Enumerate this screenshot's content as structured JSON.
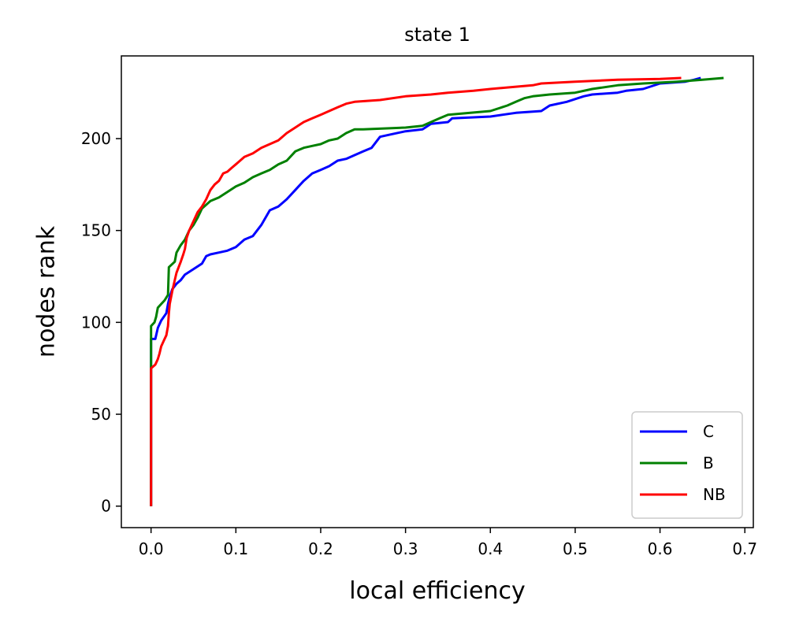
{
  "chart_data": {
    "type": "line",
    "title": "state 1",
    "xlabel": "local efficiency",
    "ylabel": "nodes rank",
    "xlim": [
      -0.035,
      0.71
    ],
    "ylim": [
      -11.7,
      245
    ],
    "xticks": [
      "0.0",
      "0.1",
      "0.2",
      "0.3",
      "0.4",
      "0.5",
      "0.6",
      "0.7"
    ],
    "yticks": [
      "0",
      "50",
      "100",
      "150",
      "200"
    ],
    "legend_position": "lower-right",
    "series": [
      {
        "name": "C",
        "color": "#0000ff",
        "points": [
          [
            0,
            0
          ],
          [
            0,
            75
          ],
          [
            0.0,
            91
          ],
          [
            0.005,
            91
          ],
          [
            0.008,
            97
          ],
          [
            0.012,
            101
          ],
          [
            0.018,
            105
          ],
          [
            0.02,
            110
          ],
          [
            0.022,
            114
          ],
          [
            0.025,
            118
          ],
          [
            0.03,
            121
          ],
          [
            0.035,
            123
          ],
          [
            0.04,
            126
          ],
          [
            0.05,
            129
          ],
          [
            0.06,
            132
          ],
          [
            0.065,
            136
          ],
          [
            0.07,
            137
          ],
          [
            0.08,
            138
          ],
          [
            0.09,
            139
          ],
          [
            0.1,
            141
          ],
          [
            0.11,
            145
          ],
          [
            0.12,
            147
          ],
          [
            0.13,
            153
          ],
          [
            0.14,
            161
          ],
          [
            0.15,
            163
          ],
          [
            0.16,
            167
          ],
          [
            0.17,
            172
          ],
          [
            0.18,
            177
          ],
          [
            0.19,
            181
          ],
          [
            0.2,
            183
          ],
          [
            0.21,
            185
          ],
          [
            0.22,
            188
          ],
          [
            0.23,
            189
          ],
          [
            0.24,
            191
          ],
          [
            0.25,
            193
          ],
          [
            0.26,
            195
          ],
          [
            0.27,
            201
          ],
          [
            0.28,
            202
          ],
          [
            0.3,
            204
          ],
          [
            0.32,
            205
          ],
          [
            0.33,
            208
          ],
          [
            0.35,
            209
          ],
          [
            0.355,
            211
          ],
          [
            0.4,
            212
          ],
          [
            0.43,
            214
          ],
          [
            0.46,
            215
          ],
          [
            0.47,
            218
          ],
          [
            0.49,
            220
          ],
          [
            0.51,
            223
          ],
          [
            0.52,
            224
          ],
          [
            0.55,
            225
          ],
          [
            0.56,
            226
          ],
          [
            0.58,
            227
          ],
          [
            0.6,
            230
          ],
          [
            0.63,
            231
          ],
          [
            0.64,
            232
          ],
          [
            0.648,
            233
          ]
        ]
      },
      {
        "name": "B",
        "color": "#008000",
        "points": [
          [
            0,
            0
          ],
          [
            0,
            75
          ],
          [
            0,
            98
          ],
          [
            0.004,
            100
          ],
          [
            0.006,
            103
          ],
          [
            0.008,
            108
          ],
          [
            0.012,
            110
          ],
          [
            0.016,
            112
          ],
          [
            0.02,
            115
          ],
          [
            0.021,
            130
          ],
          [
            0.028,
            133
          ],
          [
            0.03,
            138
          ],
          [
            0.035,
            142
          ],
          [
            0.04,
            145
          ],
          [
            0.045,
            150
          ],
          [
            0.05,
            153
          ],
          [
            0.055,
            157
          ],
          [
            0.06,
            162
          ],
          [
            0.065,
            164
          ],
          [
            0.07,
            166
          ],
          [
            0.08,
            168
          ],
          [
            0.09,
            171
          ],
          [
            0.1,
            174
          ],
          [
            0.11,
            176
          ],
          [
            0.12,
            179
          ],
          [
            0.13,
            181
          ],
          [
            0.14,
            183
          ],
          [
            0.15,
            186
          ],
          [
            0.16,
            188
          ],
          [
            0.17,
            193
          ],
          [
            0.18,
            195
          ],
          [
            0.19,
            196
          ],
          [
            0.2,
            197
          ],
          [
            0.21,
            199
          ],
          [
            0.22,
            200
          ],
          [
            0.23,
            203
          ],
          [
            0.24,
            205
          ],
          [
            0.25,
            205
          ],
          [
            0.3,
            206
          ],
          [
            0.32,
            207
          ],
          [
            0.33,
            209
          ],
          [
            0.34,
            211
          ],
          [
            0.35,
            213
          ],
          [
            0.4,
            215
          ],
          [
            0.42,
            218
          ],
          [
            0.43,
            220
          ],
          [
            0.44,
            222
          ],
          [
            0.45,
            223
          ],
          [
            0.47,
            224
          ],
          [
            0.5,
            225
          ],
          [
            0.52,
            227
          ],
          [
            0.55,
            229
          ],
          [
            0.58,
            230
          ],
          [
            0.62,
            231
          ],
          [
            0.65,
            232
          ],
          [
            0.675,
            233
          ]
        ]
      },
      {
        "name": "NB",
        "color": "#ff0000",
        "points": [
          [
            0,
            0
          ],
          [
            0,
            75
          ],
          [
            0.005,
            77
          ],
          [
            0.008,
            80
          ],
          [
            0.01,
            83
          ],
          [
            0.012,
            87
          ],
          [
            0.015,
            90
          ],
          [
            0.018,
            93
          ],
          [
            0.02,
            98
          ],
          [
            0.021,
            105
          ],
          [
            0.022,
            110
          ],
          [
            0.025,
            117
          ],
          [
            0.028,
            123
          ],
          [
            0.03,
            127
          ],
          [
            0.035,
            133
          ],
          [
            0.038,
            137
          ],
          [
            0.04,
            140
          ],
          [
            0.042,
            146
          ],
          [
            0.045,
            150
          ],
          [
            0.05,
            155
          ],
          [
            0.055,
            160
          ],
          [
            0.06,
            163
          ],
          [
            0.065,
            167
          ],
          [
            0.07,
            172
          ],
          [
            0.075,
            175
          ],
          [
            0.08,
            177
          ],
          [
            0.085,
            181
          ],
          [
            0.09,
            182
          ],
          [
            0.095,
            184
          ],
          [
            0.1,
            186
          ],
          [
            0.105,
            188
          ],
          [
            0.11,
            190
          ],
          [
            0.12,
            192
          ],
          [
            0.13,
            195
          ],
          [
            0.14,
            197
          ],
          [
            0.15,
            199
          ],
          [
            0.16,
            203
          ],
          [
            0.17,
            206
          ],
          [
            0.18,
            209
          ],
          [
            0.19,
            211
          ],
          [
            0.2,
            213
          ],
          [
            0.21,
            215
          ],
          [
            0.22,
            217
          ],
          [
            0.23,
            219
          ],
          [
            0.24,
            220
          ],
          [
            0.27,
            221
          ],
          [
            0.3,
            223
          ],
          [
            0.33,
            224
          ],
          [
            0.35,
            225
          ],
          [
            0.38,
            226
          ],
          [
            0.4,
            227
          ],
          [
            0.45,
            229
          ],
          [
            0.46,
            230
          ],
          [
            0.5,
            231
          ],
          [
            0.55,
            232
          ],
          [
            0.6,
            232.5
          ],
          [
            0.625,
            233
          ]
        ]
      }
    ]
  }
}
